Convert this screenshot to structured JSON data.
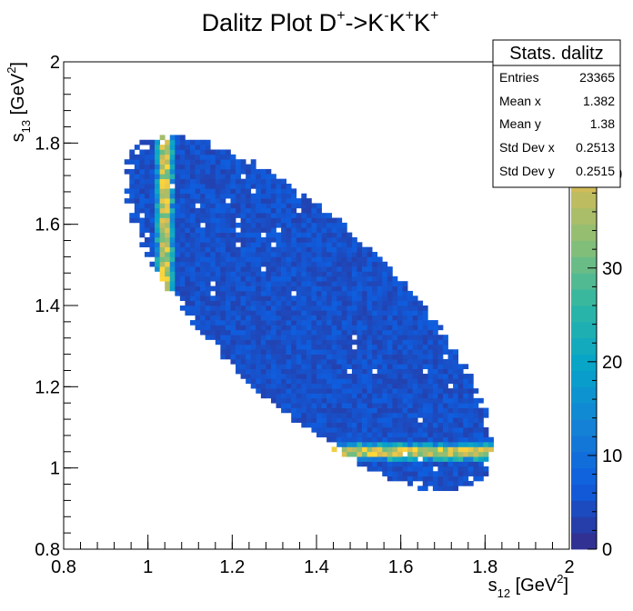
{
  "chart_data": {
    "type": "heatmap",
    "title": "Dalitz Plot D+->K-K+K+",
    "title_parts": {
      "main": "Dalitz Plot D",
      "sup1": "+",
      "mid1": "->K",
      "sup2": "-",
      "mid2": "K",
      "sup3": "+",
      "mid3": "K",
      "sup4": "+"
    },
    "xlabel": "s12 [GeV2]",
    "ylabel": "s13 [GeV2]",
    "xlabel_parts": {
      "base": "s",
      "sub": "12",
      "unit_open": " [GeV",
      "unit_sup": "2",
      "unit_close": "]"
    },
    "ylabel_parts": {
      "base": "s",
      "sub": "13",
      "unit_open": " [GeV",
      "unit_sup": "2",
      "unit_close": "]"
    },
    "xlim": [
      0.8,
      2.0
    ],
    "ylim": [
      0.8,
      2.0
    ],
    "x_ticks": [
      "0.8",
      "1",
      "1.2",
      "1.4",
      "1.6",
      "1.8",
      "2"
    ],
    "y_ticks": [
      "0.8",
      "1",
      "1.2",
      "1.4",
      "1.6",
      "1.8",
      "2"
    ],
    "x_tick_values": [
      0.8,
      1.0,
      1.2,
      1.4,
      1.6,
      1.8,
      2.0
    ],
    "y_tick_values": [
      0.8,
      1.0,
      1.2,
      1.4,
      1.6,
      1.8,
      2.0
    ],
    "bins_x": 100,
    "bins_y": 100,
    "z_range": [
      0,
      52
    ],
    "z_ticks": [
      "0",
      "10",
      "20",
      "30",
      "40"
    ],
    "z_tick_values": [
      0,
      10,
      20,
      30,
      40
    ],
    "background_level": 5,
    "region": {
      "description": "kinematically allowed elliptical region",
      "center": [
        1.38,
        1.38
      ],
      "major_axis_direction": [
        1,
        -1
      ],
      "semi_major": 0.58,
      "semi_minor": 0.22
    },
    "resonance_bands": [
      {
        "axis": "x",
        "value": 1.04,
        "label": "phi band in s12",
        "peak_counts": 46
      },
      {
        "axis": "y",
        "value": 1.04,
        "label": "phi band in s13",
        "peak_counts": 46
      }
    ],
    "palette": [
      "#352a87",
      "#0f5cdd",
      "#1481d6",
      "#06a4ca",
      "#2eb7a4",
      "#87bf77",
      "#d1bb59",
      "#fed63a",
      "#f9fb0e"
    ]
  },
  "stats": {
    "title": "Stats. dalitz",
    "rows": [
      {
        "label": "Entries",
        "value": "23365"
      },
      {
        "label": "Mean x",
        "value": "1.382"
      },
      {
        "label": "Mean y",
        "value": "1.38"
      },
      {
        "label": "Std Dev x",
        "value": "0.2513"
      },
      {
        "label": "Std Dev y",
        "value": "0.2515"
      }
    ]
  }
}
